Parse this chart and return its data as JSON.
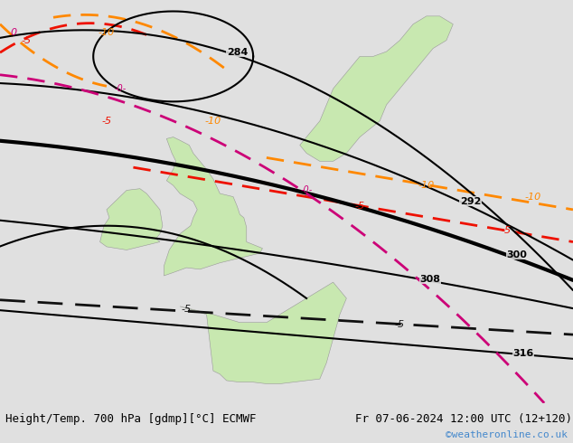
{
  "title_left": "Height/Temp. 700 hPa [gdmp][°C] ECMWF",
  "title_right": "Fr 07-06-2024 12:00 UTC (12+120)",
  "watermark": "©weatheronline.co.uk",
  "bg_color": "#e0e0e0",
  "land_color": "#c8e8b0",
  "sea_color": "#e0e0e0",
  "border_color": "#999999",
  "geopotential_color": "#000000",
  "temp_orange_color": "#ff8800",
  "temp_red_color": "#ee1100",
  "temp_magenta_color": "#cc0077",
  "temp_black_dash_color": "#111111",
  "text_color_watermark": "#4488cc",
  "figsize": [
    6.34,
    4.9
  ],
  "dpi": 100,
  "extent": [
    -18,
    25,
    42,
    67
  ]
}
